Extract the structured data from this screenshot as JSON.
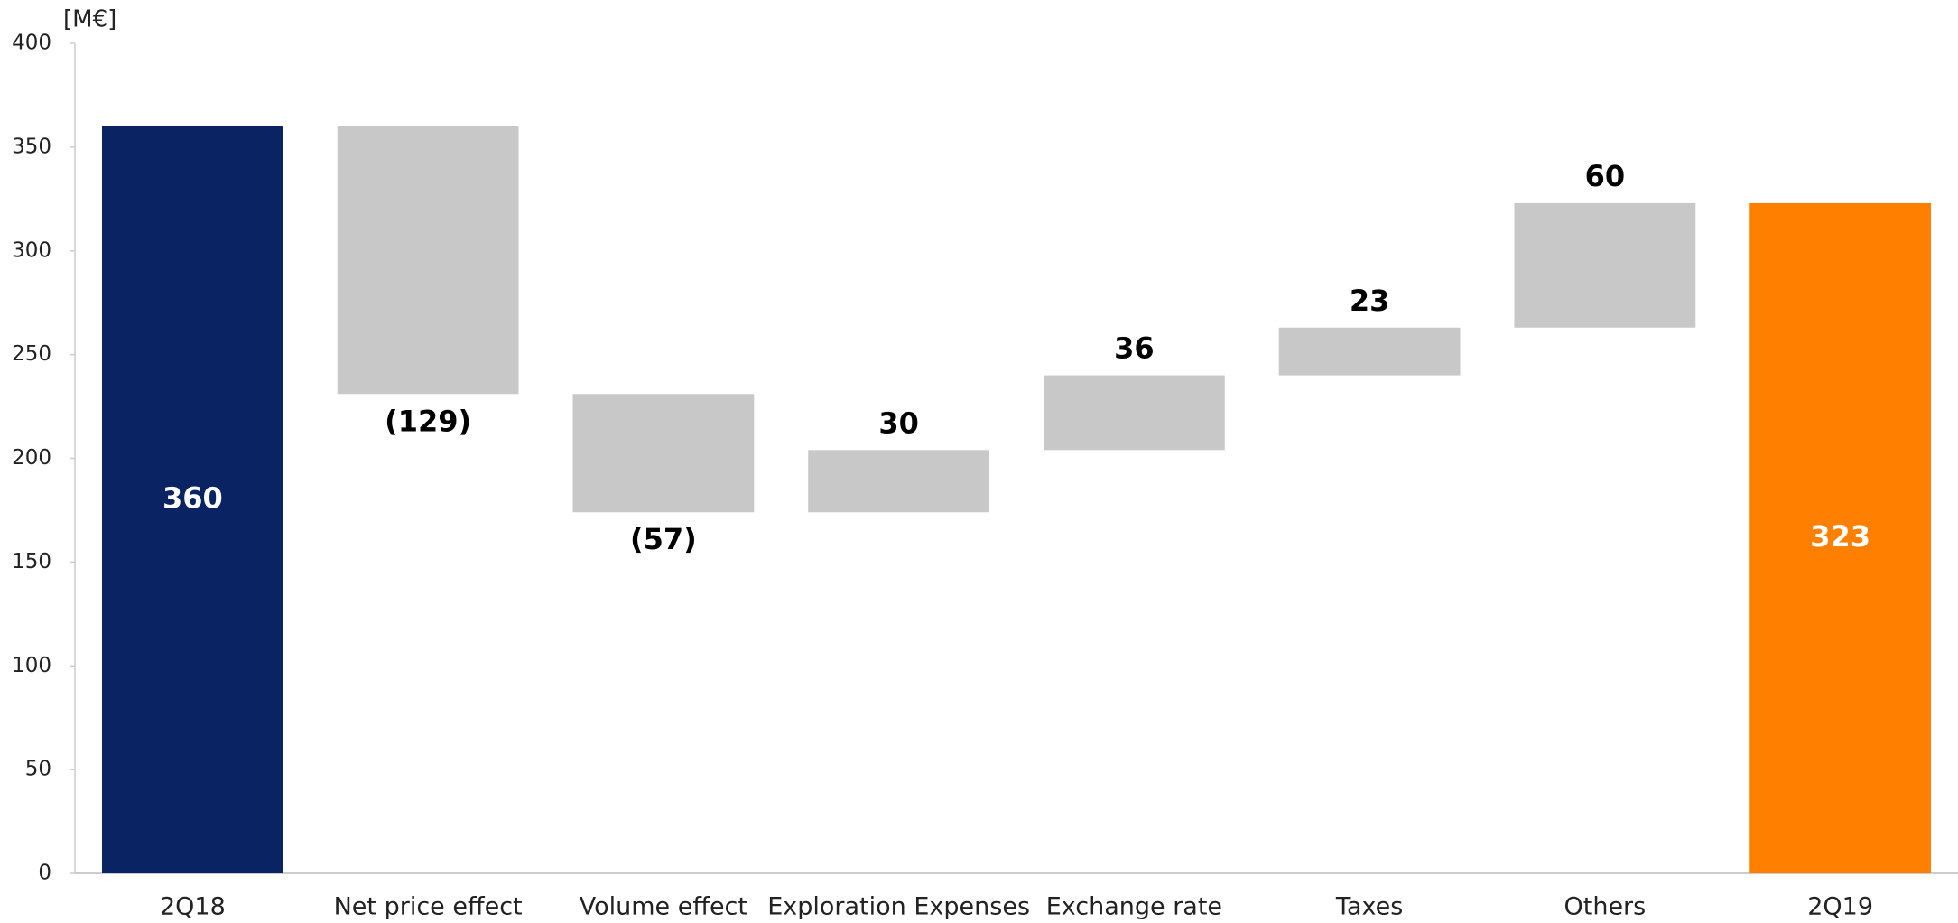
{
  "chart_data": {
    "type": "waterfall",
    "y_label": "[M€]",
    "categories": [
      "2Q18",
      "Net price effect",
      "Volume effect",
      "Exploration Expenses",
      "Exchange rate",
      "Taxes",
      "Others",
      "2Q19"
    ],
    "values": [
      360,
      -129,
      -57,
      30,
      36,
      23,
      60,
      323
    ],
    "value_labels": [
      "360",
      "(129)",
      "(57)",
      "30",
      "36",
      "23",
      "60",
      "323"
    ],
    "colors": [
      "#0a2463",
      "#c8c8c8",
      "#c8c8c8",
      "#c8c8c8",
      "#c8c8c8",
      "#c8c8c8",
      "#c8c8c8",
      "#ff8000"
    ],
    "ylim": [
      0,
      400
    ],
    "yticks": [
      0,
      50,
      100,
      150,
      200,
      250,
      300,
      350,
      400
    ]
  }
}
